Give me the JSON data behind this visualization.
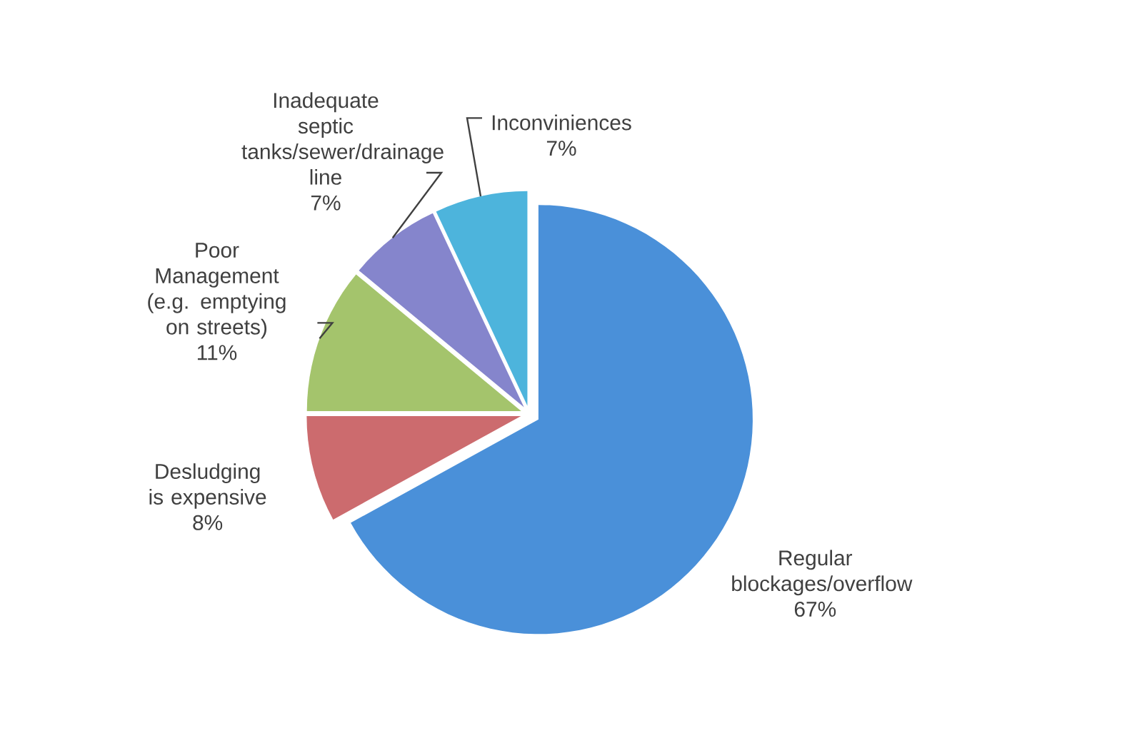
{
  "chart_data": {
    "type": "pie",
    "categories": [
      "Regular blockages/overflow",
      "Desludging is expensive",
      "Poor Management (e.g. emptying on streets)",
      "Inadequate septic tanks/sewer/drainage line",
      "Inconviniences"
    ],
    "values": [
      67,
      8,
      11,
      7,
      7
    ],
    "value_labels": [
      "67%",
      "8%",
      "11%",
      "7%",
      "7%"
    ],
    "colors": [
      "#4a90d9",
      "#cc6b6e",
      "#a4c46c",
      "#8585cc",
      "#4db4dc"
    ]
  }
}
